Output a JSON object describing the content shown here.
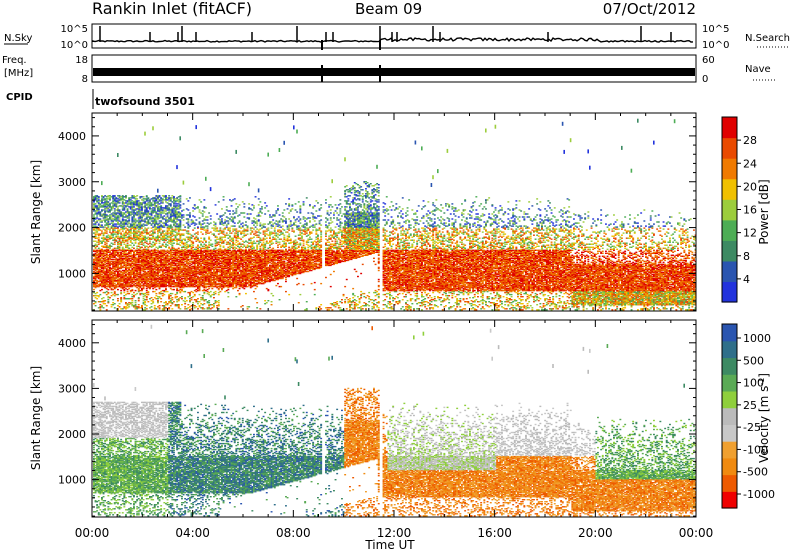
{
  "header": {
    "title": "Rankin Inlet (fitACF)",
    "beam": "Beam 09",
    "date": "07/Oct/2012"
  },
  "summary_panels": {
    "nsky_label": "N.Sky",
    "nsky_ticks": [
      "10^5",
      "10^0"
    ],
    "nsearch_label": "N.Search",
    "nsearch_ticks": [
      "10^5",
      "10^0"
    ],
    "freq_label_1": "Freq.",
    "freq_label_2": "[MHz]",
    "freq_ticks": [
      "18",
      "8"
    ],
    "nave_label": "Nave",
    "nave_ticks": [
      "60",
      "0"
    ],
    "cpid_label": "CPID",
    "cpid_value": "twofsound 3501"
  },
  "colors": {
    "power": [
      "#2233dd",
      "#2a55b0",
      "#3d8a63",
      "#4dad55",
      "#9ccd3c",
      "#f0c000",
      "#f07a00",
      "#e94a00",
      "#e00000"
    ],
    "velocity": [
      "#f00000",
      "#ee5a00",
      "#f08a10",
      "#f0a030",
      "#c8c8c8",
      "#bbbbbb",
      "#8fcf3c",
      "#5aaa55",
      "#3d8a63",
      "#2f6f8a",
      "#2a55b0"
    ]
  },
  "chart_data": [
    {
      "type": "heatmap",
      "name": "power",
      "xlabel": "",
      "ylabel": "Slant Range [km]",
      "y_ticks": [
        "1000",
        "2000",
        "3000",
        "4000"
      ],
      "x_ticks": [
        "00:00",
        "04:00",
        "08:00",
        "12:00",
        "16:00",
        "20:00",
        "00:00"
      ],
      "xlim": [
        "00:00",
        "24:00"
      ],
      "ylim": [
        180,
        4500
      ],
      "colorbar": {
        "label": "Power [dB]",
        "ticks": [
          "4",
          "8",
          "12",
          "16",
          "20",
          "24",
          "28"
        ],
        "range": [
          0,
          32
        ]
      }
    },
    {
      "type": "heatmap",
      "name": "velocity",
      "xlabel": "Time UT",
      "ylabel": "Slant Range [km]",
      "y_ticks": [
        "1000",
        "2000",
        "3000",
        "4000"
      ],
      "x_ticks": [
        "00:00",
        "04:00",
        "08:00",
        "12:00",
        "16:00",
        "20:00",
        "00:00"
      ],
      "xlim": [
        "00:00",
        "24:00"
      ],
      "ylim": [
        180,
        4500
      ],
      "colorbar": {
        "label": "Velocity [m s",
        "label_exp": "-1",
        "label_end": "]",
        "ticks": [
          "1000",
          "500",
          "100",
          "25",
          "-25",
          "-100",
          "-500",
          "-1000"
        ]
      }
    }
  ]
}
